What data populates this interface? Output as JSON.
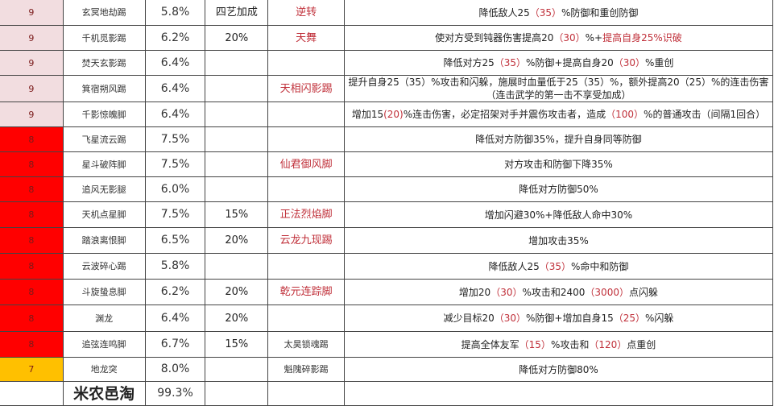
{
  "colors": {
    "level9": "#f2dde0",
    "level8": "#ff0000",
    "level7": "#ffc000",
    "highlight": "#c0303a"
  },
  "header_bonus": "四艺加成",
  "rows": [
    {
      "level": "9",
      "name": "玄冥地劫踢",
      "pct": "5.8%",
      "bonus": "四艺加成",
      "skill": "逆转",
      "desc": [
        [
          "降低敌人25",
          ""
        ],
        [
          "（35）",
          "r"
        ],
        [
          "%防御和重创防御",
          ""
        ]
      ]
    },
    {
      "level": "9",
      "name": "千机觅影踢",
      "pct": "6.2%",
      "bonus": "20%",
      "skill": "天舞",
      "desc": [
        [
          "使对方受到钝器伤害提高20",
          ""
        ],
        [
          "（30）",
          "r"
        ],
        [
          "%+",
          ""
        ],
        [
          "提高自身25%识破",
          "r"
        ]
      ]
    },
    {
      "level": "9",
      "name": "焚天玄影踢",
      "pct": "6.4%",
      "bonus": "",
      "skill": "",
      "desc": [
        [
          "降低对方25",
          ""
        ],
        [
          "（35）",
          "r"
        ],
        [
          "%防御+提高自身20",
          ""
        ],
        [
          "（30）",
          "r"
        ],
        [
          "%重创",
          ""
        ]
      ]
    },
    {
      "level": "9",
      "name": "箕宿朔风踢",
      "pct": "6.4%",
      "bonus": "",
      "skill": "天相闪影踢",
      "desc": [
        [
          "提升自身25（35）%攻击和闪躲，施展时血量低于25（35）%，额外提高20（25）%的连击伤害（连击武学的第一击不享受加成）",
          ""
        ]
      ]
    },
    {
      "level": "9",
      "name": "千影惊魄脚",
      "pct": "6.4%",
      "bonus": "",
      "skill": "",
      "desc": [
        [
          "增加15",
          ""
        ],
        [
          "(20)",
          "r"
        ],
        [
          "%连击伤害，必定招架对手并震伤攻击者，造成",
          ""
        ],
        [
          "（100）",
          "r"
        ],
        [
          "%的普通攻击（间隔1回合）",
          ""
        ]
      ]
    },
    {
      "level": "8",
      "name": "飞星流云踢",
      "pct": "7.5%",
      "bonus": "",
      "skill": "",
      "desc": [
        [
          "降低对方防御35%，提升自身同等防御",
          ""
        ]
      ]
    },
    {
      "level": "8",
      "name": "星斗破阵脚",
      "pct": "7.5%",
      "bonus": "",
      "skill": "仙君御风脚",
      "desc": [
        [
          "对方攻击和防御下降35%",
          ""
        ]
      ]
    },
    {
      "level": "8",
      "name": "追风无影腿",
      "pct": "6.0%",
      "bonus": "",
      "skill": "",
      "desc": [
        [
          "降低对方防御50%",
          ""
        ]
      ]
    },
    {
      "level": "8",
      "name": "天机点星脚",
      "pct": "7.5%",
      "bonus": "15%",
      "skill": "正法烈焰脚",
      "desc": [
        [
          "增加闪避30%+降低敌人命中30%",
          ""
        ]
      ]
    },
    {
      "level": "8",
      "name": "踏浪离恨脚",
      "pct": "6.5%",
      "bonus": "20%",
      "skill": "云龙九现踢",
      "desc": [
        [
          "增加攻击35%",
          ""
        ]
      ]
    },
    {
      "level": "8",
      "name": "云波碎心踢",
      "pct": "5.8%",
      "bonus": "",
      "skill": "",
      "desc": [
        [
          "降低敌人25",
          ""
        ],
        [
          "（35）",
          "r"
        ],
        [
          "%命中和防御",
          ""
        ]
      ]
    },
    {
      "level": "8",
      "name": "斗旋蛰息脚",
      "pct": "6.2%",
      "bonus": "20%",
      "skill": "乾元连踪脚",
      "desc": [
        [
          "增加20",
          ""
        ],
        [
          "（30）",
          "r"
        ],
        [
          "%攻击和2400",
          ""
        ],
        [
          "（3000）",
          "r"
        ],
        [
          "点闪躲",
          ""
        ]
      ]
    },
    {
      "level": "8",
      "name": "渊龙",
      "pct": "6.4%",
      "bonus": "20%",
      "skill": "",
      "desc": [
        [
          "减少目标20",
          ""
        ],
        [
          "（30）",
          "r"
        ],
        [
          "%防御+增加自身15",
          ""
        ],
        [
          "（25）",
          "r"
        ],
        [
          "%闪躲",
          ""
        ]
      ]
    },
    {
      "level": "8",
      "name": "追弦连鸣脚",
      "pct": "6.7%",
      "bonus": "15%",
      "skill": "太昊锁魂踢",
      "skill_plain": true,
      "desc": [
        [
          "提高全体友军",
          ""
        ],
        [
          "（15）",
          "r"
        ],
        [
          "%攻击和",
          ""
        ],
        [
          "（120）",
          "r"
        ],
        [
          "点重创",
          ""
        ]
      ]
    },
    {
      "level": "7",
      "name": "地龙突",
      "pct": "8.0%",
      "bonus": "",
      "skill": "魁隗碎影踢",
      "skill_plain": true,
      "desc": [
        [
          "降低对方防御80%",
          ""
        ]
      ]
    },
    {
      "level": "",
      "name": "",
      "pct": "99.3%",
      "bonus": "",
      "skill": "",
      "desc": []
    }
  ],
  "watermark": "米农邑淘"
}
